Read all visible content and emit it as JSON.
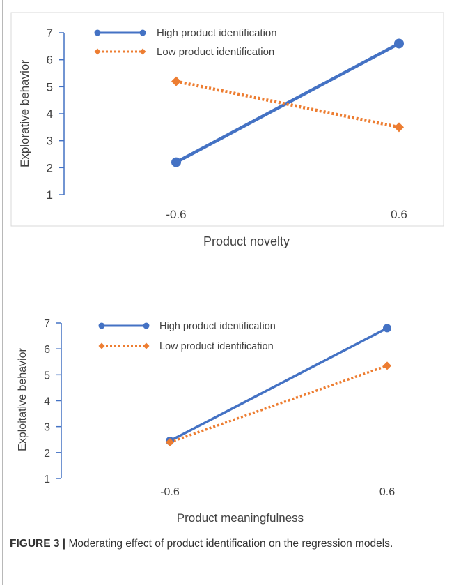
{
  "chart_data": [
    {
      "type": "line",
      "categories": [
        "-0.6",
        "0.6"
      ],
      "xlabel": "Product novelty",
      "ylabel": "Explorative behavior",
      "ylim": [
        1,
        7
      ],
      "yticks": [
        "1",
        "2",
        "3",
        "4",
        "5",
        "6",
        "7"
      ],
      "grid": false,
      "legend_position": "top",
      "series": [
        {
          "name": "High product identification",
          "values": [
            2.2,
            6.6
          ],
          "color": "#4472C4",
          "style": "solid",
          "marker": "circle"
        },
        {
          "name": "Low product identification",
          "values": [
            5.2,
            3.5
          ],
          "color": "#ED7D31",
          "style": "dotted",
          "marker": "diamond"
        }
      ]
    },
    {
      "type": "line",
      "categories": [
        "-0.6",
        "0.6"
      ],
      "xlabel": "Product meaningfulness",
      "ylabel": "Exploitative behavior",
      "ylim": [
        1,
        7
      ],
      "yticks": [
        "1",
        "2",
        "3",
        "4",
        "5",
        "6",
        "7"
      ],
      "grid": false,
      "legend_position": "top",
      "series": [
        {
          "name": "High product identification",
          "values": [
            2.45,
            6.8
          ],
          "color": "#4472C4",
          "style": "solid",
          "marker": "circle"
        },
        {
          "name": "Low product identification",
          "values": [
            2.4,
            5.35
          ],
          "color": "#ED7D31",
          "style": "dotted",
          "marker": "diamond"
        }
      ]
    }
  ],
  "caption": {
    "label": "FIGURE 3 |",
    "text": " Moderating effect of product identification on the regression models."
  }
}
